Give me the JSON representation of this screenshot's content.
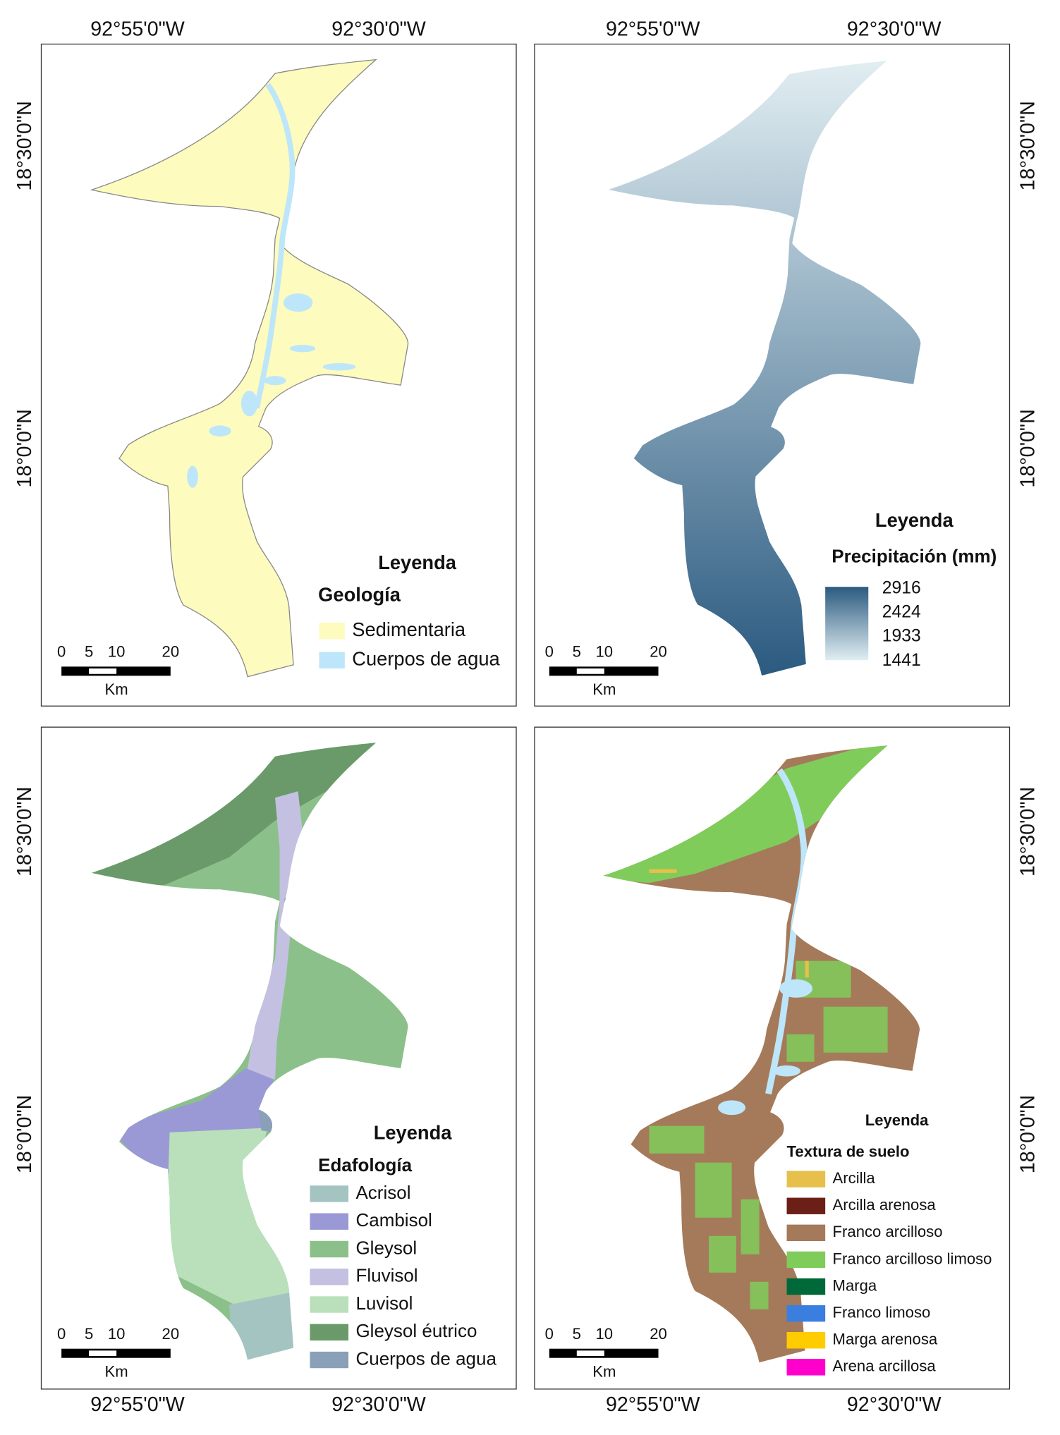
{
  "x_labels": [
    "92°55'0\"W",
    "92°30'0\"W"
  ],
  "y_labels": [
    "18°30'0\"N",
    "18°0'0\"N"
  ],
  "scale_bar": {
    "ticks": [
      "0",
      "5",
      "10",
      "20"
    ],
    "unit": "Km"
  },
  "panels": [
    {
      "legend": {
        "title": "Leyenda",
        "subtitle": "Geología",
        "items": [
          {
            "label": "Sedimentaria",
            "color": "#fdfbbe"
          },
          {
            "label": "Cuerpos de agua",
            "color": "#bde6fa"
          }
        ]
      }
    },
    {
      "legend": {
        "title": "Leyenda",
        "subtitle": "Precipitación (mm)",
        "ramp": {
          "labels": [
            2916,
            2424,
            1933,
            1441
          ],
          "colors": [
            "#2b5a80",
            "#e1eef2"
          ]
        }
      }
    },
    {
      "legend": {
        "title": "Leyenda",
        "subtitle": "Edafología",
        "items": [
          {
            "label": "Acrisol",
            "color": "#a3c4c1"
          },
          {
            "label": "Cambisol",
            "color": "#9a99d6"
          },
          {
            "label": "Gleysol",
            "color": "#8cc08a"
          },
          {
            "label": "Fluvisol",
            "color": "#c4c0e2"
          },
          {
            "label": "Luvisol",
            "color": "#b9e0bb"
          },
          {
            "label": "Gleysol éutrico",
            "color": "#6a9a6a"
          },
          {
            "label": "Cuerpos de agua",
            "color": "#8aa0b8"
          }
        ]
      }
    },
    {
      "legend": {
        "title": "Leyenda",
        "subtitle": "Textura de suelo",
        "items": [
          {
            "label": "Arcilla",
            "color": "#e6c04a"
          },
          {
            "label": "Arcilla arenosa",
            "color": "#6b1f16"
          },
          {
            "label": "Franco arcilloso",
            "color": "#a57a5a"
          },
          {
            "label": "Franco arcilloso limoso",
            "color": "#80cc5a"
          },
          {
            "label": "Marga",
            "color": "#00693a"
          },
          {
            "label": "Franco limoso",
            "color": "#3a7fe0"
          },
          {
            "label": "Marga arenosa",
            "color": "#ffcc00"
          },
          {
            "label": "Arena arcillosa",
            "color": "#ff00cc"
          }
        ]
      }
    }
  ]
}
